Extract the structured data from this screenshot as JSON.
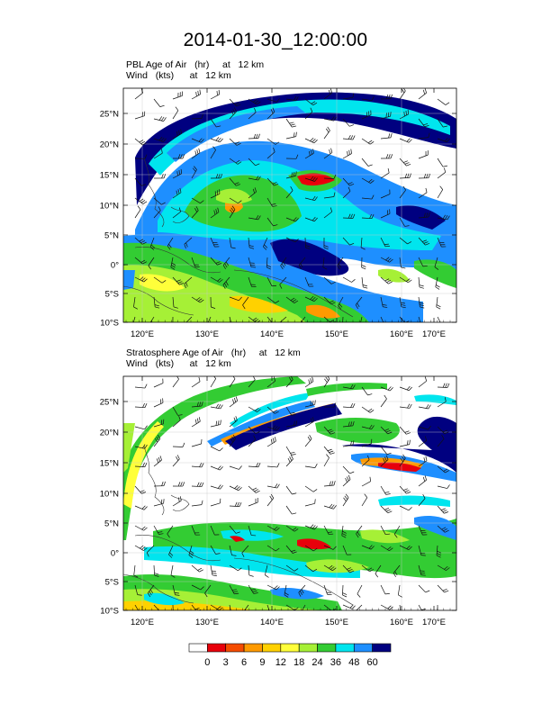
{
  "title": "2014-01-30_12:00:00",
  "panels": [
    {
      "field_label": "PBL Age of Air",
      "field_units": "(hr)",
      "level": "at   12 km",
      "wind_label": "Wind",
      "wind_units": "(kts)",
      "wind_level": "at   12 km",
      "lon_ticks": [
        "120°E",
        "130°E",
        "140°E",
        "150°E",
        "160°E",
        "170°E"
      ],
      "lat_ticks": [
        "25°N",
        "20°N",
        "15°N",
        "10°N",
        "5°N",
        "0°",
        "5°S",
        "10°S"
      ]
    },
    {
      "field_label": "Stratosphere Age of Air",
      "field_units": "(hr)",
      "level": "at   12 km",
      "wind_label": "Wind",
      "wind_units": "(kts)",
      "wind_level": "at   12 km",
      "lon_ticks": [
        "120°E",
        "130°E",
        "140°E",
        "150°E",
        "160°E",
        "170°E"
      ],
      "lat_ticks": [
        "25°N",
        "20°N",
        "15°N",
        "10°N",
        "5°N",
        "0°",
        "5°S",
        "10°S"
      ]
    }
  ],
  "colorbar": {
    "labels": [
      "0",
      "3",
      "6",
      "9",
      "12",
      "18",
      "24",
      "36",
      "48",
      "60"
    ],
    "colors": [
      "#ffffff",
      "#e8000b",
      "#f54c00",
      "#ff9a00",
      "#ffd100",
      "#ffff3a",
      "#a6f036",
      "#33cc33",
      "#00e5ee",
      "#1e8fff",
      "#000080"
    ]
  }
}
